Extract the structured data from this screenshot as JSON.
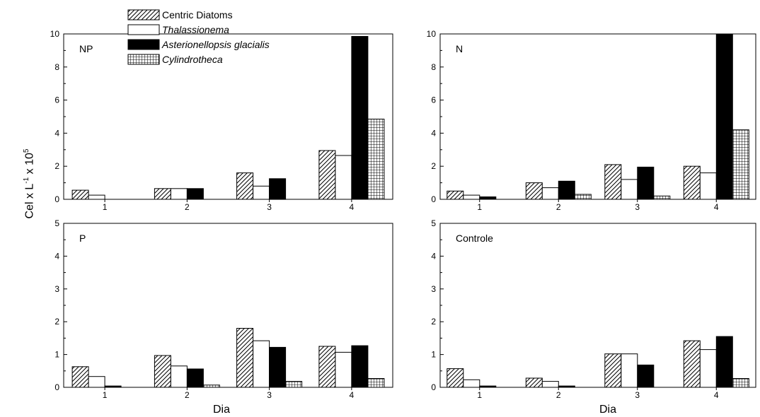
{
  "chart_data": {
    "type": "bar",
    "ylabel_parts": [
      "Cel x L",
      "-1",
      " x 10",
      "5"
    ],
    "xlabel": "Dia",
    "categories": [
      "1",
      "2",
      "3",
      "4"
    ],
    "legend": [
      {
        "name": "Centric Diatoms",
        "pattern": "diag",
        "italic": false
      },
      {
        "name": "Thalassionema",
        "pattern": "white",
        "italic": true
      },
      {
        "name": "Asterionellopsis glacialis",
        "pattern": "black",
        "italic": true
      },
      {
        "name": "Cylindrotheca",
        "pattern": "grid",
        "italic": true
      }
    ],
    "panels": [
      {
        "label": "NP",
        "ylim": [
          0,
          10
        ],
        "yticks": [
          0,
          2,
          4,
          6,
          8,
          10
        ],
        "series": [
          {
            "name": "Centric Diatoms",
            "values": [
              0.55,
              0.65,
              1.6,
              2.95
            ]
          },
          {
            "name": "Thalassionema",
            "values": [
              0.25,
              0.65,
              0.8,
              2.65
            ]
          },
          {
            "name": "Asterionellopsis glacialis",
            "values": [
              0,
              0.65,
              1.25,
              9.85
            ]
          },
          {
            "name": "Cylindrotheca",
            "values": [
              0,
              0,
              0,
              4.85
            ]
          }
        ]
      },
      {
        "label": "N",
        "ylim": [
          0,
          10
        ],
        "yticks": [
          0,
          2,
          4,
          6,
          8,
          10
        ],
        "series": [
          {
            "name": "Centric Diatoms",
            "values": [
              0.5,
              1.0,
              2.1,
              2.0
            ]
          },
          {
            "name": "Thalassionema",
            "values": [
              0.25,
              0.7,
              1.2,
              1.6
            ]
          },
          {
            "name": "Asterionellopsis glacialis",
            "values": [
              0.15,
              1.1,
              1.95,
              10.0
            ]
          },
          {
            "name": "Cylindrotheca",
            "values": [
              0,
              0.3,
              0.2,
              4.2
            ]
          }
        ]
      },
      {
        "label": "P",
        "ylim": [
          0,
          5
        ],
        "yticks": [
          0,
          1,
          2,
          3,
          4,
          5
        ],
        "series": [
          {
            "name": "Centric Diatoms",
            "values": [
              0.63,
              0.97,
              1.8,
              1.25
            ]
          },
          {
            "name": "Thalassionema",
            "values": [
              0.33,
              0.65,
              1.42,
              1.07
            ]
          },
          {
            "name": "Asterionellopsis glacialis",
            "values": [
              0.04,
              0.56,
              1.22,
              1.27
            ]
          },
          {
            "name": "Cylindrotheca",
            "values": [
              0,
              0.07,
              0.18,
              0.27
            ]
          }
        ]
      },
      {
        "label": "Controle",
        "ylim": [
          0,
          5
        ],
        "yticks": [
          0,
          1,
          2,
          3,
          4,
          5
        ],
        "series": [
          {
            "name": "Centric Diatoms",
            "values": [
              0.57,
              0.28,
              1.02,
              1.42
            ]
          },
          {
            "name": "Thalassionema",
            "values": [
              0.23,
              0.18,
              1.02,
              1.15
            ]
          },
          {
            "name": "Asterionellopsis glacialis",
            "values": [
              0.04,
              0.04,
              0.68,
              1.55
            ]
          },
          {
            "name": "Cylindrotheca",
            "values": [
              0,
              0,
              0,
              0.27
            ]
          }
        ]
      }
    ],
    "grid": false,
    "legend_placement": "top-left"
  }
}
